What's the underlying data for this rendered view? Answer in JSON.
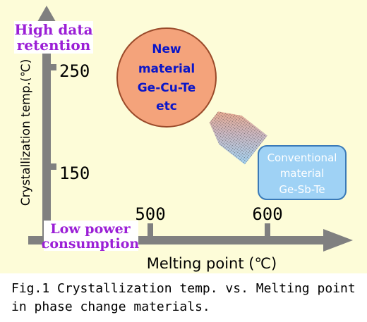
{
  "labels": {
    "high_retention_line1": "High data",
    "high_retention_line2": "retention",
    "low_power_line1": "Low power",
    "low_power_line2": "consumption",
    "y_axis": "Crystallization temp.(℃)",
    "x_axis": "Melting point (℃)",
    "y_tick_250": "250",
    "y_tick_150": "150",
    "x_tick_500": "500",
    "x_tick_600": "600"
  },
  "new_material": {
    "line1": "New",
    "line2": "material",
    "line3": "Ge-Cu-Te",
    "line4": "etc"
  },
  "conventional": {
    "line1": "Conventional",
    "line2": "material",
    "line3": "Ge-Sb-Te"
  },
  "caption": {
    "line1": "Fig.1  Crystallization temp. vs. Melting point",
    "line2": "in phase change materials."
  },
  "colors": {
    "background": "#fdfcd8",
    "axis": "#808080",
    "accent_purple": "#9b1fd6",
    "new_material_fill": "#f4a37b",
    "new_material_text": "#0a16c8",
    "conventional_fill": "#9fd2f5",
    "conventional_text": "#ffffff"
  }
}
